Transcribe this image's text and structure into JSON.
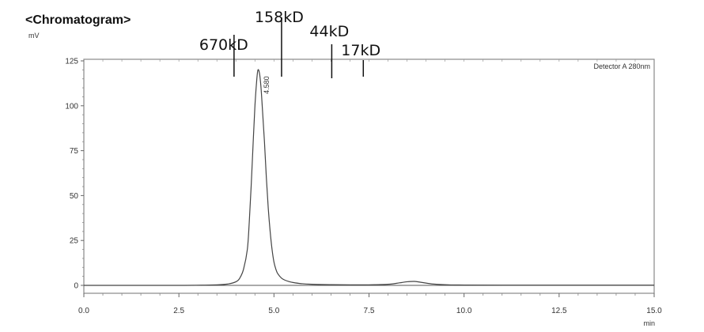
{
  "chart_data": {
    "type": "line",
    "title": "<Chromatogram>",
    "ylabel": "mV",
    "xlabel": "min",
    "detector_label": "Detector A 280nm",
    "xlim": [
      0,
      15
    ],
    "ylim": [
      -8,
      125
    ],
    "x_ticks": [
      0.0,
      2.5,
      5.0,
      7.5,
      10.0,
      12.5,
      15.0
    ],
    "x_tick_labels": [
      "0.0",
      "2.5",
      "5.0",
      "7.5",
      "10.0",
      "12.5",
      "15.0"
    ],
    "y_ticks": [
      0,
      25,
      50,
      75,
      100,
      125
    ],
    "y_tick_labels": [
      "0",
      "25",
      "50",
      "75",
      "100",
      "125"
    ],
    "grid": false,
    "peak_label": {
      "text": "4.580",
      "x": 4.58
    },
    "markers": [
      {
        "label": "670kD",
        "x": 3.95
      },
      {
        "label": "158kD",
        "x": 5.2
      },
      {
        "label": "44kD",
        "x": 6.52
      },
      {
        "label": "17kD",
        "x": 7.35
      }
    ],
    "series": [
      {
        "x": [
          0.0,
          2.5,
          3.5,
          3.8,
          4.0,
          4.1,
          4.2,
          4.3,
          4.35,
          4.4,
          4.45,
          4.5,
          4.55,
          4.58,
          4.62,
          4.66,
          4.7,
          4.75,
          4.8,
          4.85,
          4.9,
          4.95,
          5.0,
          5.05,
          5.1,
          5.2,
          5.3,
          5.4,
          5.5,
          5.7,
          6.0,
          6.5,
          7.0,
          7.5,
          8.0,
          8.3,
          8.5,
          8.7,
          8.9,
          9.2,
          9.6,
          10.0,
          11.0,
          12.5,
          15.0
        ],
        "y": [
          0,
          0,
          0.3,
          0.8,
          2,
          4,
          9,
          20,
          35,
          55,
          78,
          100,
          115,
          120,
          118,
          110,
          97,
          80,
          60,
          43,
          30,
          20,
          13,
          9,
          6.5,
          4,
          2.8,
          2.1,
          1.6,
          1.0,
          0.6,
          0.4,
          0.3,
          0.3,
          0.6,
          1.4,
          2.0,
          2.2,
          1.6,
          0.7,
          0.3,
          0.2,
          0.1,
          0.1,
          0.1
        ]
      }
    ]
  }
}
